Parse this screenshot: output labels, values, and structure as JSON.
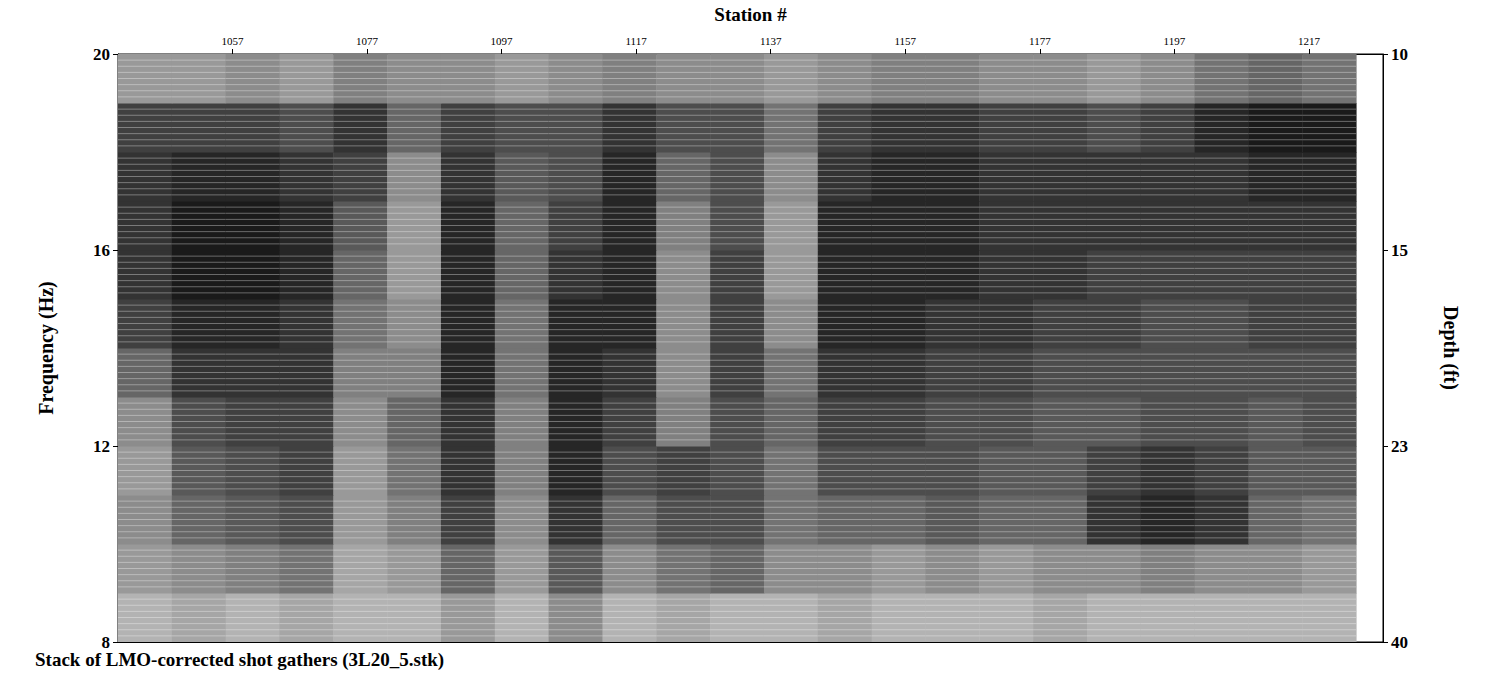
{
  "chart_data": {
    "type": "heatmap",
    "title": "Stack of LMO-corrected shot gathers (3L20_5.stk)",
    "x_label": "Station #",
    "y_label": "Frequency (Hz)",
    "xlim": [
      1040,
      1228
    ],
    "xticks": [
      1057,
      1077,
      1097,
      1117,
      1137,
      1157,
      1177,
      1197,
      1217
    ],
    "ylim": [
      8,
      20
    ],
    "yticks": [
      8,
      12,
      16,
      20
    ],
    "depth_axis": {
      "label": "Depth (ft)",
      "ticks": [
        {
          "frequency": 20,
          "depth": 10
        },
        {
          "frequency": 16,
          "depth": 15
        },
        {
          "frequency": 12,
          "depth": 23
        },
        {
          "frequency": 8,
          "depth": 40
        }
      ]
    },
    "color": "#000000",
    "color_range": [
      0,
      1
    ],
    "grid": false,
    "x": [
      1044,
      1052,
      1060,
      1068,
      1076,
      1084,
      1092,
      1100,
      1108,
      1116,
      1124,
      1132,
      1140,
      1148,
      1156,
      1164,
      1172,
      1180,
      1188,
      1196,
      1204,
      1212,
      1220
    ],
    "y": [
      8.5,
      9.5,
      10.5,
      11.5,
      12.5,
      13.5,
      14.5,
      15.5,
      16.5,
      17.5,
      18.5,
      19.5
    ],
    "cells": [
      [
        0.3,
        0.35,
        0.3,
        0.35,
        0.3,
        0.3,
        0.4,
        0.3,
        0.45,
        0.3,
        0.35,
        0.3,
        0.3,
        0.35,
        0.3,
        0.3,
        0.3,
        0.35,
        0.3,
        0.3,
        0.3,
        0.3,
        0.3
      ],
      [
        0.4,
        0.45,
        0.5,
        0.55,
        0.35,
        0.4,
        0.6,
        0.4,
        0.65,
        0.45,
        0.55,
        0.6,
        0.45,
        0.45,
        0.4,
        0.45,
        0.4,
        0.45,
        0.45,
        0.5,
        0.45,
        0.45,
        0.4
      ],
      [
        0.45,
        0.6,
        0.65,
        0.7,
        0.4,
        0.5,
        0.75,
        0.45,
        0.8,
        0.6,
        0.7,
        0.7,
        0.55,
        0.6,
        0.6,
        0.65,
        0.6,
        0.6,
        0.8,
        0.85,
        0.8,
        0.6,
        0.55
      ],
      [
        0.4,
        0.65,
        0.7,
        0.75,
        0.4,
        0.55,
        0.8,
        0.5,
        0.85,
        0.7,
        0.75,
        0.7,
        0.55,
        0.7,
        0.7,
        0.7,
        0.65,
        0.65,
        0.75,
        0.8,
        0.75,
        0.65,
        0.65
      ],
      [
        0.45,
        0.7,
        0.75,
        0.75,
        0.45,
        0.6,
        0.8,
        0.5,
        0.85,
        0.75,
        0.5,
        0.7,
        0.6,
        0.75,
        0.75,
        0.7,
        0.7,
        0.65,
        0.65,
        0.7,
        0.7,
        0.65,
        0.7
      ],
      [
        0.6,
        0.8,
        0.8,
        0.8,
        0.5,
        0.5,
        0.85,
        0.55,
        0.85,
        0.8,
        0.45,
        0.75,
        0.55,
        0.8,
        0.8,
        0.75,
        0.75,
        0.7,
        0.7,
        0.7,
        0.7,
        0.7,
        0.7
      ],
      [
        0.75,
        0.85,
        0.85,
        0.8,
        0.55,
        0.45,
        0.85,
        0.55,
        0.85,
        0.85,
        0.45,
        0.75,
        0.45,
        0.85,
        0.85,
        0.8,
        0.8,
        0.75,
        0.75,
        0.7,
        0.7,
        0.75,
        0.75
      ],
      [
        0.8,
        0.9,
        0.9,
        0.85,
        0.6,
        0.4,
        0.85,
        0.6,
        0.8,
        0.85,
        0.45,
        0.75,
        0.4,
        0.85,
        0.85,
        0.85,
        0.8,
        0.8,
        0.75,
        0.75,
        0.75,
        0.75,
        0.75
      ],
      [
        0.8,
        0.9,
        0.9,
        0.85,
        0.65,
        0.4,
        0.85,
        0.6,
        0.75,
        0.85,
        0.5,
        0.7,
        0.4,
        0.85,
        0.85,
        0.85,
        0.8,
        0.8,
        0.8,
        0.8,
        0.8,
        0.8,
        0.8
      ],
      [
        0.8,
        0.85,
        0.85,
        0.8,
        0.75,
        0.45,
        0.8,
        0.65,
        0.7,
        0.85,
        0.6,
        0.7,
        0.45,
        0.8,
        0.85,
        0.85,
        0.8,
        0.8,
        0.8,
        0.8,
        0.8,
        0.85,
        0.85
      ],
      [
        0.75,
        0.75,
        0.75,
        0.7,
        0.8,
        0.6,
        0.75,
        0.7,
        0.7,
        0.8,
        0.7,
        0.7,
        0.55,
        0.75,
        0.8,
        0.8,
        0.75,
        0.75,
        0.7,
        0.75,
        0.85,
        0.9,
        0.9
      ],
      [
        0.4,
        0.4,
        0.45,
        0.4,
        0.5,
        0.45,
        0.45,
        0.4,
        0.45,
        0.5,
        0.45,
        0.45,
        0.4,
        0.45,
        0.5,
        0.5,
        0.45,
        0.45,
        0.4,
        0.45,
        0.55,
        0.6,
        0.55
      ]
    ]
  }
}
